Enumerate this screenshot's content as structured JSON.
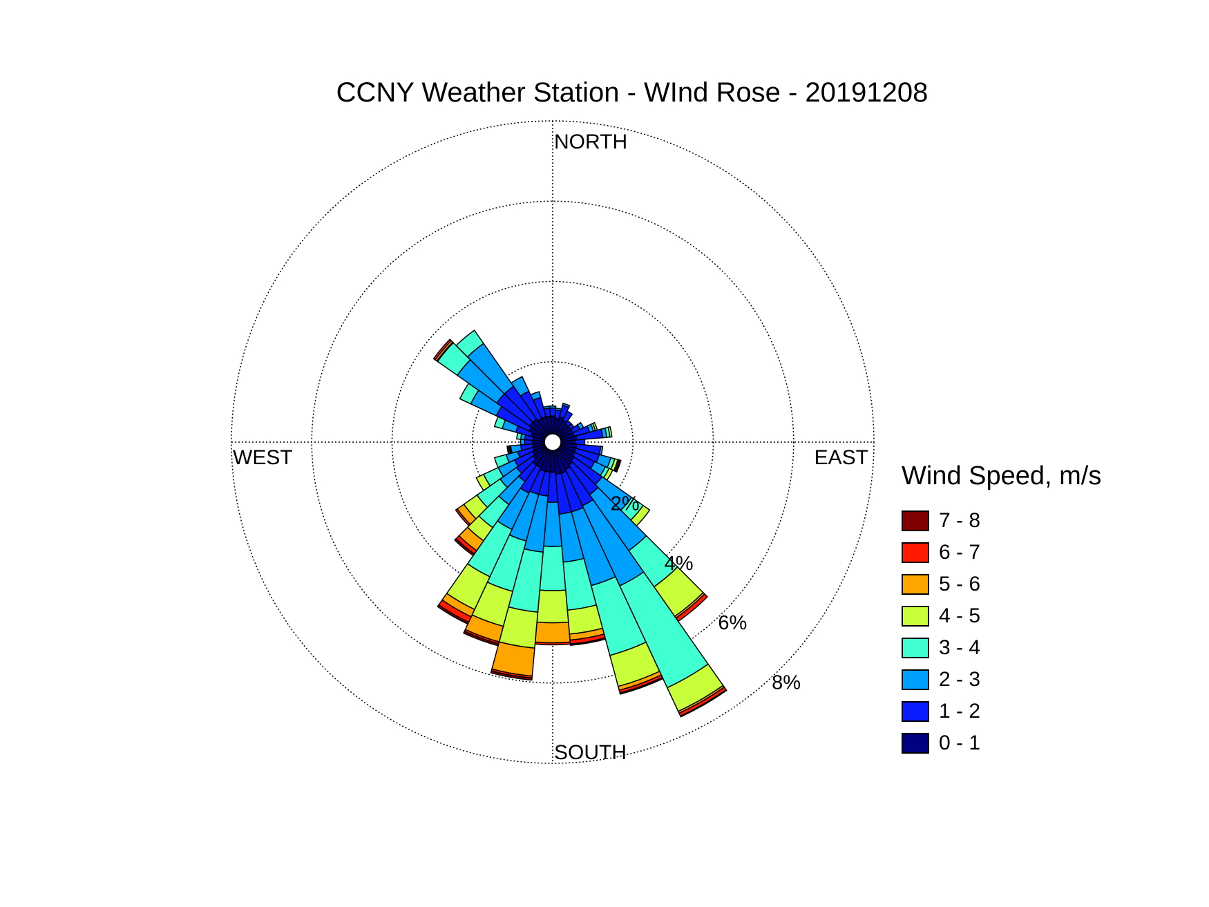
{
  "title": "CCNY Weather Station - WInd Rose - 20191208",
  "chart_data": {
    "type": "windrose",
    "title": "CCNY Weather Station - WInd Rose - 20191208",
    "direction_labels": {
      "north": "NORTH",
      "south": "SOUTH",
      "east": "EAST",
      "west": "WEST"
    },
    "rings": [
      2,
      4,
      6,
      8
    ],
    "ring_labels": [
      "2%",
      "4%",
      "6%",
      "8%"
    ],
    "rmax": 8,
    "grid": true,
    "legend_title": "Wind Speed, m/s",
    "legend_position": "right",
    "bins": [
      {
        "label": "0 - 1",
        "color": "#000080"
      },
      {
        "label": "1 - 2",
        "color": "#0a1bff"
      },
      {
        "label": "2 - 3",
        "color": "#00a0ff"
      },
      {
        "label": "3 - 4",
        "color": "#40ffd0"
      },
      {
        "label": "4 - 5",
        "color": "#c8ff3a"
      },
      {
        "label": "5 - 6",
        "color": "#ffa500"
      },
      {
        "label": "6 - 7",
        "color": "#ff1a00"
      },
      {
        "label": "7 - 8",
        "color": "#800000"
      }
    ],
    "sector_width_deg": 10,
    "sectors": [
      {
        "dir": 0,
        "values": [
          0.65,
          0.2,
          0.05,
          0,
          0,
          0,
          0,
          0
        ]
      },
      {
        "dir": 10,
        "values": [
          0.6,
          0.2,
          0.05,
          0,
          0,
          0,
          0,
          0
        ]
      },
      {
        "dir": 20,
        "values": [
          0.65,
          0.3,
          0.05,
          0,
          0,
          0,
          0,
          0
        ]
      },
      {
        "dir": 30,
        "values": [
          0.6,
          0.25,
          0,
          0,
          0,
          0,
          0,
          0
        ]
      },
      {
        "dir": 40,
        "values": [
          0.55,
          0.1,
          0,
          0,
          0,
          0,
          0,
          0
        ]
      },
      {
        "dir": 50,
        "values": [
          0.55,
          0.1,
          0,
          0,
          0,
          0,
          0,
          0
        ]
      },
      {
        "dir": 60,
        "values": [
          0.55,
          0.2,
          0.1,
          0,
          0,
          0,
          0,
          0
        ]
      },
      {
        "dir": 70,
        "values": [
          0.55,
          0.4,
          0.1,
          0.05,
          0.05,
          0,
          0,
          0
        ]
      },
      {
        "dir": 80,
        "values": [
          0.6,
          0.65,
          0.1,
          0.08,
          0.05,
          0,
          0,
          0
        ]
      },
      {
        "dir": 90,
        "values": [
          0.55,
          0.25,
          0,
          0,
          0,
          0,
          0,
          0
        ]
      },
      {
        "dir": 100,
        "values": [
          0.6,
          0.6,
          0.05,
          0,
          0,
          0,
          0,
          0
        ]
      },
      {
        "dir": 110,
        "values": [
          0.6,
          0.6,
          0.3,
          0.1,
          0.08,
          0.03,
          0.03,
          0.02
        ]
      },
      {
        "dir": 120,
        "values": [
          0.6,
          0.55,
          0.3,
          0.1,
          0.1,
          0,
          0,
          0
        ]
      },
      {
        "dir": 130,
        "values": [
          0.65,
          0.85,
          0.9,
          0.35,
          0.2,
          0,
          0,
          0
        ]
      },
      {
        "dir": 140,
        "values": [
          0.7,
          0.9,
          1.7,
          1.1,
          0.9,
          0.05,
          0.1,
          0
        ]
      },
      {
        "dir": 150,
        "values": [
          0.75,
          1.0,
          2.2,
          2.8,
          0.65,
          0.05,
          0.08,
          0.02
        ]
      },
      {
        "dir": 160,
        "values": [
          0.8,
          1.0,
          1.9,
          1.8,
          0.8,
          0.1,
          0.07,
          0.03
        ]
      },
      {
        "dir": 170,
        "values": [
          0.8,
          1.0,
          1.2,
          1.2,
          0.6,
          0.15,
          0.1,
          0.03
        ]
      },
      {
        "dir": 180,
        "values": [
          0.75,
          0.75,
          1.1,
          1.1,
          0.8,
          0.5,
          0.05,
          0
        ]
      },
      {
        "dir": 190,
        "values": [
          0.75,
          0.6,
          1.4,
          1.5,
          0.9,
          0.7,
          0.05,
          0.05
        ]
      },
      {
        "dir": 200,
        "values": [
          0.75,
          0.6,
          1.2,
          1.3,
          0.9,
          0.4,
          0.05,
          0.05
        ]
      },
      {
        "dir": 210,
        "values": [
          0.7,
          0.7,
          1.0,
          1.3,
          0.9,
          0.2,
          0.15,
          0.05
        ]
      },
      {
        "dir": 220,
        "values": [
          0.7,
          0.5,
          0.7,
          0.7,
          0.4,
          0.3,
          0.1,
          0.05
        ]
      },
      {
        "dir": 230,
        "values": [
          0.6,
          0.5,
          0.5,
          0.7,
          0.4,
          0.2,
          0.05,
          0
        ]
      },
      {
        "dir": 240,
        "values": [
          0.55,
          0.5,
          0.45,
          0.4,
          0.2,
          0,
          0,
          0
        ]
      },
      {
        "dir": 250,
        "values": [
          0.5,
          0.4,
          0.3,
          0.3,
          0,
          0,
          0,
          0
        ]
      },
      {
        "dir": 260,
        "values": [
          0.5,
          0.3,
          0.25,
          0.02,
          0.02,
          0.03,
          0.02,
          0
        ]
      },
      {
        "dir": 270,
        "values": [
          0.5,
          0.2,
          0.1,
          0,
          0,
          0,
          0,
          0
        ]
      },
      {
        "dir": 280,
        "values": [
          0.5,
          0.2,
          0.1,
          0.1,
          0,
          0,
          0,
          0
        ]
      },
      {
        "dir": 290,
        "values": [
          0.55,
          0.4,
          0.35,
          0.2,
          0,
          0,
          0,
          0
        ]
      },
      {
        "dir": 300,
        "values": [
          0.65,
          0.9,
          0.7,
          0.3,
          0,
          0,
          0,
          0
        ]
      },
      {
        "dir": 310,
        "values": [
          0.7,
          1.0,
          1.2,
          0.6,
          0.02,
          0.05,
          0.05,
          0
        ]
      },
      {
        "dir": 320,
        "values": [
          0.7,
          1.0,
          1.3,
          0.4,
          0,
          0,
          0,
          0
        ]
      },
      {
        "dir": 330,
        "values": [
          0.65,
          0.75,
          0.4,
          0,
          0,
          0,
          0,
          0
        ]
      },
      {
        "dir": 340,
        "values": [
          0.65,
          0.5,
          0.15,
          0,
          0,
          0,
          0,
          0
        ]
      },
      {
        "dir": 350,
        "values": [
          0.65,
          0.2,
          0.05,
          0,
          0,
          0,
          0,
          0
        ]
      }
    ]
  }
}
